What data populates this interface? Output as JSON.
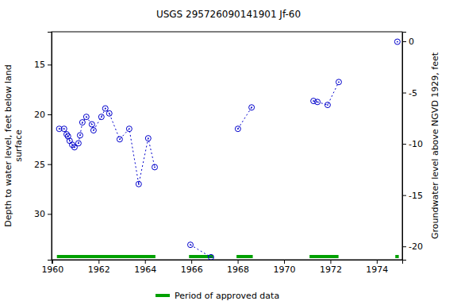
{
  "chart_data": {
    "type": "line",
    "title": "USGS 295726090141901 Jf-60",
    "ylabel": [
      "Depth to water level, feet below land",
      "surface"
    ],
    "y2label": "Groundwater level above NGVD 1929, feet",
    "xlim": [
      1959.97,
      1975.1
    ],
    "xticks": [
      1960,
      1962,
      1964,
      1966,
      1968,
      1970,
      1972,
      1974
    ],
    "ylim": [
      11.7,
      34.6
    ],
    "yticks": [
      15,
      20,
      25,
      30
    ],
    "y2lim": [
      0.93,
      -21.3
    ],
    "y2ticks": [
      0,
      -5,
      -10,
      -15,
      -20
    ],
    "x": [
      1960.3,
      1960.51,
      1960.62,
      1960.68,
      1960.75,
      1960.86,
      1960.96,
      1961.13,
      1961.2,
      1961.3,
      1961.47,
      1961.71,
      1961.78,
      1962.12,
      1962.29,
      1962.46,
      1962.91,
      1963.32,
      1963.73,
      1964.14,
      1964.42,
      null,
      1965.96,
      1966.85,
      null,
      1968.01,
      1968.6,
      null,
      1971.27,
      1971.44,
      1971.88,
      1972.36,
      null,
      1974.89
    ],
    "series": [
      {
        "color": "#0000cc",
        "marker": "circle",
        "line_style": "dotted",
        "values": [
          21.45,
          21.45,
          22.0,
          22.2,
          22.65,
          23.05,
          23.3,
          22.9,
          22.1,
          20.8,
          20.25,
          21.0,
          21.6,
          20.25,
          19.4,
          19.9,
          22.5,
          21.45,
          27.0,
          22.4,
          25.3,
          null,
          33.1,
          34.35,
          null,
          21.45,
          19.3,
          null,
          18.65,
          18.75,
          19.05,
          16.75,
          null,
          12.7
        ]
      }
    ],
    "approved_periods": {
      "name": "Period of approved data",
      "color": "#00a000",
      "ranges": [
        [
          1960.2,
          1964.45
        ],
        [
          1965.9,
          1966.95
        ],
        [
          1967.95,
          1968.65
        ],
        [
          1971.1,
          1972.35
        ],
        [
          1974.8,
          1974.95
        ]
      ]
    }
  }
}
